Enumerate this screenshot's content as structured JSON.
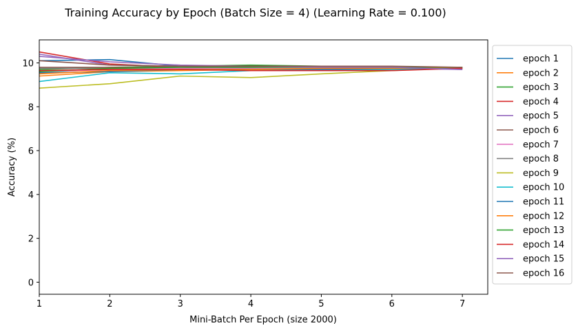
{
  "chart_data": {
    "type": "line",
    "title": "Training Accuracy by Epoch (Batch Size = 4) (Learning Rate = 0.100)",
    "xlabel": "Mini-Batch Per Epoch (size 2000)",
    "ylabel": "Accuracy (%)",
    "xlim": [
      1,
      7.36
    ],
    "ylim": [
      -0.55,
      11.05
    ],
    "x_ticks": [
      1,
      2,
      3,
      4,
      5,
      6,
      7
    ],
    "y_ticks": [
      0,
      2,
      4,
      6,
      8,
      10
    ],
    "grid": false,
    "legend_position": "outside-right",
    "x": [
      1,
      2,
      3,
      4,
      5,
      6,
      7
    ],
    "series": [
      {
        "name": "epoch 1",
        "color": "#1f77b4",
        "values": [
          10.1,
          10.15,
          9.85,
          9.75,
          9.7,
          9.75,
          9.8
        ]
      },
      {
        "name": "epoch 2",
        "color": "#ff7f0e",
        "values": [
          9.4,
          9.6,
          9.65,
          9.7,
          9.75,
          9.75,
          9.8
        ]
      },
      {
        "name": "epoch 3",
        "color": "#2ca02c",
        "values": [
          9.7,
          9.8,
          9.85,
          9.9,
          9.85,
          9.8,
          9.8
        ]
      },
      {
        "name": "epoch 4",
        "color": "#d62728",
        "values": [
          10.5,
          9.95,
          9.8,
          9.7,
          9.65,
          9.7,
          9.75
        ]
      },
      {
        "name": "epoch 5",
        "color": "#9467bd",
        "values": [
          10.3,
          10.05,
          9.9,
          9.85,
          9.8,
          9.75,
          9.7
        ]
      },
      {
        "name": "epoch 6",
        "color": "#8c564b",
        "values": [
          9.8,
          9.8,
          9.8,
          9.85,
          9.85,
          9.8,
          9.75
        ]
      },
      {
        "name": "epoch 7",
        "color": "#e377c2",
        "values": [
          9.6,
          9.7,
          9.75,
          9.75,
          9.75,
          9.75,
          9.75
        ]
      },
      {
        "name": "epoch 8",
        "color": "#7f7f7f",
        "values": [
          9.75,
          9.75,
          9.8,
          9.8,
          9.8,
          9.8,
          9.75
        ]
      },
      {
        "name": "epoch 9",
        "color": "#bcbd22",
        "values": [
          8.85,
          9.05,
          9.4,
          9.33,
          9.5,
          9.65,
          9.8
        ]
      },
      {
        "name": "epoch 10",
        "color": "#17becf",
        "values": [
          9.15,
          9.55,
          9.5,
          9.65,
          9.7,
          9.7,
          9.8
        ]
      },
      {
        "name": "epoch 11",
        "color": "#1f77b4",
        "values": [
          9.55,
          9.6,
          9.7,
          9.7,
          9.7,
          9.75,
          9.75
        ]
      },
      {
        "name": "epoch 12",
        "color": "#ff7f0e",
        "values": [
          9.5,
          9.65,
          9.7,
          9.7,
          9.75,
          9.75,
          9.8
        ]
      },
      {
        "name": "epoch 13",
        "color": "#2ca02c",
        "values": [
          9.6,
          9.75,
          9.8,
          9.8,
          9.8,
          9.8,
          9.8
        ]
      },
      {
        "name": "epoch 14",
        "color": "#d62728",
        "values": [
          9.65,
          9.7,
          9.7,
          9.65,
          9.65,
          9.65,
          9.75
        ]
      },
      {
        "name": "epoch 15",
        "color": "#9467bd",
        "values": [
          10.4,
          9.9,
          9.85,
          9.85,
          9.8,
          9.8,
          9.7
        ]
      },
      {
        "name": "epoch 16",
        "color": "#8c564b",
        "values": [
          10.1,
          9.9,
          9.85,
          9.85,
          9.85,
          9.85,
          9.8
        ]
      }
    ]
  }
}
